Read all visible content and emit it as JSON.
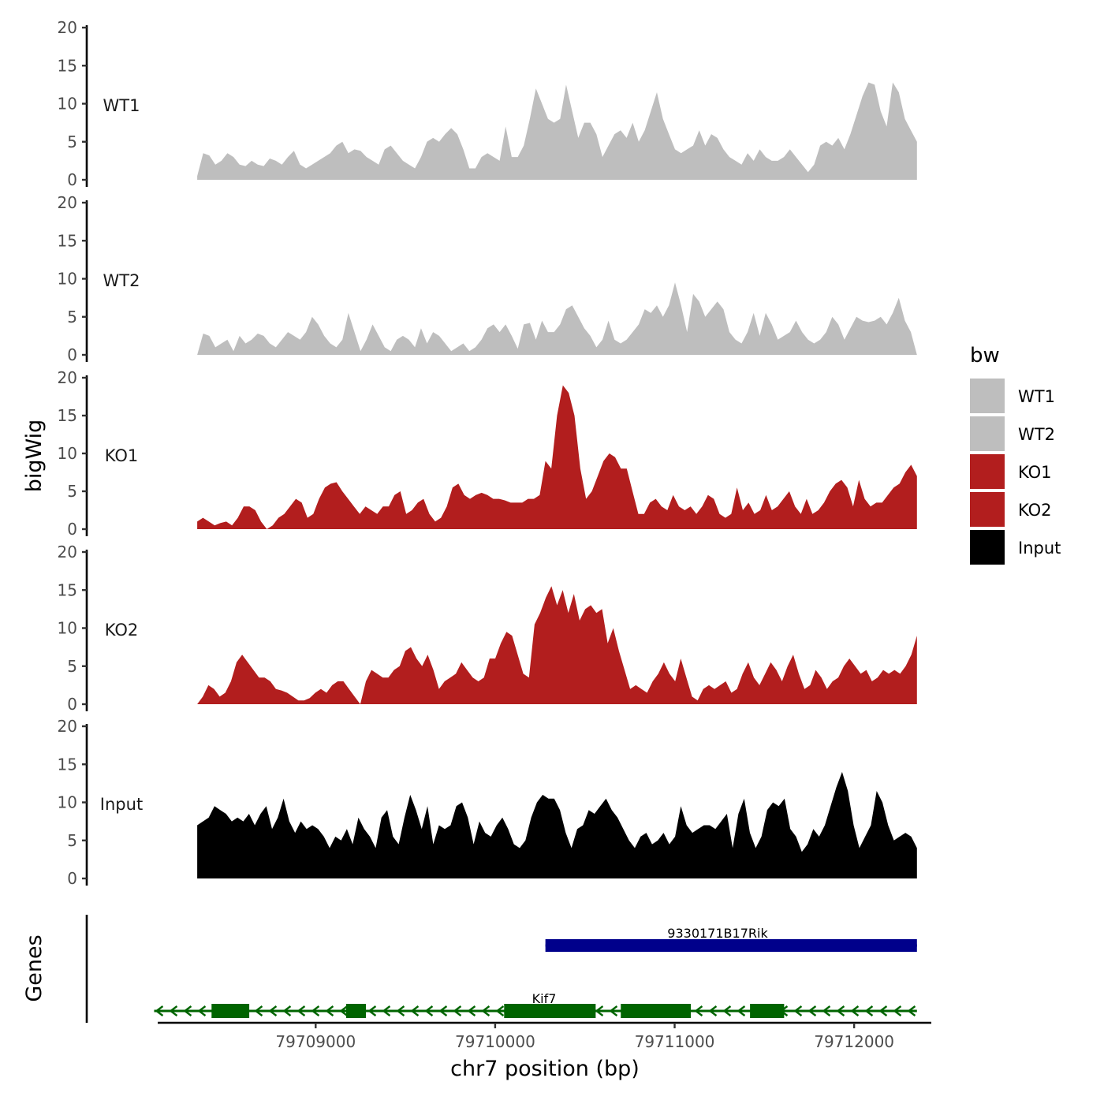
{
  "chart_data": {
    "type": "area",
    "ylabel": "bigWig",
    "genes_label": "Genes",
    "xlabel": "chr7 position (bp)",
    "ylim": [
      0,
      20
    ],
    "yticks": [
      0,
      5,
      10,
      15,
      20
    ],
    "xlim": [
      79708120,
      79712430
    ],
    "x_start": 79708340,
    "x_end": 79712350,
    "xticks": [
      79709000,
      79710000,
      79711000,
      79712000
    ],
    "xtick_labels": [
      "79709000",
      "79710000",
      "79711000",
      "79712000"
    ],
    "legend": {
      "title": "bw",
      "items": [
        {
          "label": "WT1",
          "color": "#bebebe"
        },
        {
          "label": "WT2",
          "color": "#bebebe"
        },
        {
          "label": "KO1",
          "color": "#b21e1e"
        },
        {
          "label": "KO2",
          "color": "#b21e1e"
        },
        {
          "label": "Input",
          "color": "#000000"
        }
      ]
    },
    "series": [
      {
        "name": "WT1",
        "color": "#bebebe",
        "values": [
          0.5,
          3.5,
          3.2,
          2.0,
          2.5,
          3.5,
          3.0,
          2.0,
          1.8,
          2.5,
          2.0,
          1.8,
          2.8,
          2.5,
          2.0,
          3.0,
          3.8,
          2.0,
          1.5,
          2.0,
          2.5,
          3.0,
          3.5,
          4.5,
          5.0,
          3.5,
          4.0,
          3.8,
          3.0,
          2.5,
          2.0,
          4.0,
          4.5,
          3.5,
          2.5,
          2.0,
          1.5,
          3.0,
          5.0,
          5.5,
          5.0,
          6.0,
          6.8,
          6.0,
          4.0,
          1.5,
          1.5,
          3.0,
          3.5,
          3.0,
          2.5,
          7.0,
          3.0,
          3.0,
          4.5,
          8.0,
          12.0,
          10.0,
          8.0,
          7.5,
          8.0,
          12.5,
          9.0,
          5.5,
          7.5,
          7.5,
          6.0,
          3.0,
          4.5,
          6.0,
          6.5,
          5.5,
          7.5,
          5.0,
          6.5,
          9.0,
          11.5,
          8.0,
          6.0,
          4.0,
          3.5,
          4.0,
          4.5,
          6.5,
          4.5,
          6.0,
          5.5,
          4.0,
          3.0,
          2.5,
          2.0,
          3.5,
          2.5,
          4.0,
          3.0,
          2.5,
          2.5,
          3.0,
          4.0,
          3.0,
          2.0,
          1.0,
          2.0,
          4.5,
          5.0,
          4.5,
          5.5,
          4.0,
          6.0,
          8.5,
          11.0,
          12.8,
          12.5,
          9.0,
          7.0,
          12.8,
          11.5,
          8.0,
          6.5,
          5.0
        ]
      },
      {
        "name": "WT2",
        "color": "#bebebe",
        "values": [
          0.0,
          2.8,
          2.5,
          1.0,
          1.5,
          2.0,
          0.5,
          2.5,
          1.5,
          2.0,
          2.8,
          2.5,
          1.5,
          1.0,
          2.0,
          3.0,
          2.5,
          2.0,
          3.0,
          5.0,
          4.0,
          2.5,
          1.5,
          1.0,
          2.0,
          5.5,
          3.0,
          0.5,
          2.0,
          4.0,
          2.5,
          1.0,
          0.5,
          2.0,
          2.5,
          2.0,
          1.0,
          3.5,
          1.5,
          3.0,
          2.5,
          1.5,
          0.5,
          1.0,
          1.5,
          0.5,
          1.0,
          2.0,
          3.5,
          4.0,
          3.0,
          4.0,
          2.5,
          0.8,
          4.0,
          4.2,
          2.0,
          4.5,
          3.0,
          3.0,
          4.0,
          6.0,
          6.5,
          5.0,
          3.5,
          2.5,
          1.0,
          2.0,
          4.5,
          2.0,
          1.5,
          2.0,
          3.0,
          4.0,
          6.0,
          5.5,
          6.5,
          5.0,
          6.5,
          9.5,
          6.5,
          3.0,
          8.0,
          7.0,
          5.0,
          6.0,
          7.0,
          6.0,
          3.0,
          2.0,
          1.5,
          3.0,
          5.5,
          2.5,
          5.5,
          4.0,
          2.0,
          2.5,
          3.0,
          4.5,
          3.0,
          2.0,
          1.5,
          2.0,
          3.0,
          5.0,
          4.0,
          2.0,
          3.5,
          5.0,
          4.5,
          4.3,
          4.5,
          5.0,
          4.0,
          5.5,
          7.5,
          4.5,
          3.0,
          0.0
        ]
      },
      {
        "name": "KO1",
        "color": "#b21e1e",
        "values": [
          1.0,
          1.5,
          1.0,
          0.5,
          0.8,
          1.0,
          0.5,
          1.5,
          3.0,
          3.0,
          2.5,
          1.0,
          0.0,
          0.5,
          1.5,
          2.0,
          3.0,
          4.0,
          3.5,
          1.5,
          2.0,
          4.0,
          5.5,
          6.0,
          6.2,
          5.0,
          4.0,
          3.0,
          2.0,
          3.0,
          2.5,
          2.0,
          3.0,
          3.0,
          4.5,
          5.0,
          2.0,
          2.5,
          3.5,
          4.0,
          2.0,
          1.0,
          1.5,
          3.0,
          5.5,
          6.0,
          4.5,
          4.0,
          4.5,
          4.8,
          4.5,
          4.0,
          4.0,
          3.8,
          3.5,
          3.5,
          3.5,
          4.0,
          4.0,
          4.5,
          9.0,
          8.0,
          15.0,
          19.0,
          18.0,
          15.0,
          8.0,
          4.0,
          5.0,
          7.0,
          9.0,
          10.0,
          9.5,
          8.0,
          8.0,
          5.0,
          2.0,
          2.0,
          3.5,
          4.0,
          3.0,
          2.5,
          4.5,
          3.0,
          2.5,
          3.0,
          2.0,
          3.0,
          4.5,
          4.0,
          2.0,
          1.5,
          2.0,
          5.5,
          2.5,
          3.5,
          2.0,
          2.5,
          4.5,
          2.5,
          3.0,
          4.0,
          5.0,
          3.0,
          2.0,
          4.0,
          2.0,
          2.5,
          3.5,
          5.0,
          6.0,
          6.5,
          5.5,
          3.0,
          6.5,
          4.0,
          3.0,
          3.5,
          3.5,
          4.5,
          5.5,
          6.0,
          7.5,
          8.5,
          7.0
        ]
      },
      {
        "name": "KO2",
        "color": "#b21e1e",
        "values": [
          0.0,
          1.0,
          2.5,
          2.0,
          1.0,
          1.5,
          3.0,
          5.5,
          6.5,
          5.5,
          4.5,
          3.5,
          3.5,
          3.0,
          2.0,
          1.8,
          1.5,
          1.0,
          0.5,
          0.5,
          0.8,
          1.5,
          2.0,
          1.5,
          2.5,
          3.0,
          3.0,
          2.0,
          1.0,
          0.0,
          3.0,
          4.5,
          4.0,
          3.5,
          3.5,
          4.5,
          5.0,
          7.0,
          7.5,
          6.0,
          5.0,
          6.5,
          4.5,
          2.0,
          3.0,
          3.5,
          4.0,
          5.5,
          4.5,
          3.5,
          3.0,
          3.5,
          6.0,
          6.0,
          8.0,
          9.5,
          9.0,
          6.5,
          4.0,
          3.5,
          10.5,
          12.0,
          14.0,
          15.5,
          13.0,
          15.0,
          12.0,
          14.5,
          11.0,
          12.5,
          13.0,
          12.0,
          12.5,
          8.0,
          10.0,
          7.0,
          4.5,
          2.0,
          2.5,
          2.0,
          1.5,
          3.0,
          4.0,
          5.5,
          4.0,
          3.0,
          6.0,
          3.5,
          1.0,
          0.5,
          2.0,
          2.5,
          2.0,
          2.5,
          3.0,
          1.5,
          2.0,
          4.0,
          5.5,
          3.5,
          2.5,
          4.0,
          5.5,
          4.5,
          3.0,
          5.0,
          6.5,
          4.0,
          2.0,
          2.5,
          4.5,
          3.5,
          2.0,
          3.0,
          3.5,
          5.0,
          6.0,
          5.0,
          4.0,
          4.5,
          3.0,
          3.5,
          4.5,
          4.0,
          4.5,
          4.0,
          5.0,
          6.5,
          9.0
        ]
      },
      {
        "name": "Input",
        "color": "#000000",
        "values": [
          7.0,
          7.5,
          8.0,
          9.5,
          9.0,
          8.5,
          7.5,
          8.0,
          7.5,
          8.5,
          7.0,
          8.5,
          9.5,
          6.5,
          8.0,
          10.5,
          7.5,
          6.0,
          7.5,
          6.5,
          7.0,
          6.5,
          5.5,
          4.0,
          5.5,
          5.0,
          6.5,
          4.5,
          8.0,
          6.5,
          5.5,
          4.0,
          8.0,
          9.0,
          5.5,
          4.5,
          8.0,
          11.0,
          9.0,
          6.5,
          9.5,
          4.5,
          7.0,
          6.5,
          7.0,
          9.5,
          10.0,
          8.0,
          4.5,
          7.5,
          6.0,
          5.5,
          7.0,
          8.0,
          6.5,
          4.5,
          4.0,
          5.0,
          8.0,
          10.0,
          11.0,
          10.5,
          10.5,
          9.0,
          6.0,
          4.0,
          6.5,
          7.0,
          9.0,
          8.5,
          9.5,
          10.5,
          9.0,
          8.0,
          6.5,
          5.0,
          4.0,
          5.5,
          6.0,
          4.5,
          5.0,
          6.0,
          4.5,
          5.5,
          9.5,
          7.0,
          6.0,
          6.5,
          7.0,
          7.0,
          6.5,
          7.5,
          8.5,
          4.0,
          8.5,
          10.5,
          6.0,
          4.0,
          5.5,
          9.0,
          10.0,
          9.5,
          10.5,
          6.5,
          5.5,
          3.5,
          4.5,
          6.5,
          5.5,
          7.0,
          9.5,
          12.0,
          14.0,
          11.5,
          7.0,
          4.0,
          5.5,
          7.0,
          11.5,
          10.0,
          7.0,
          5.0,
          5.5,
          6.0,
          5.5,
          4.0
        ]
      }
    ],
    "genes": [
      {
        "name": "9330171B17Rik",
        "color": "#00008b",
        "strand": "+",
        "start": 79710280,
        "end": 79712350,
        "exons": [
          [
            79710280,
            79712350
          ]
        ]
      },
      {
        "name": "Kif7",
        "color": "#006400",
        "strand": "-",
        "start": 79708100,
        "end": 79712350,
        "exons": [
          [
            79708420,
            79708630
          ],
          [
            79709170,
            79709280
          ],
          [
            79710050,
            79710560
          ],
          [
            79710700,
            79711090
          ],
          [
            79711420,
            79711610
          ]
        ]
      }
    ]
  }
}
